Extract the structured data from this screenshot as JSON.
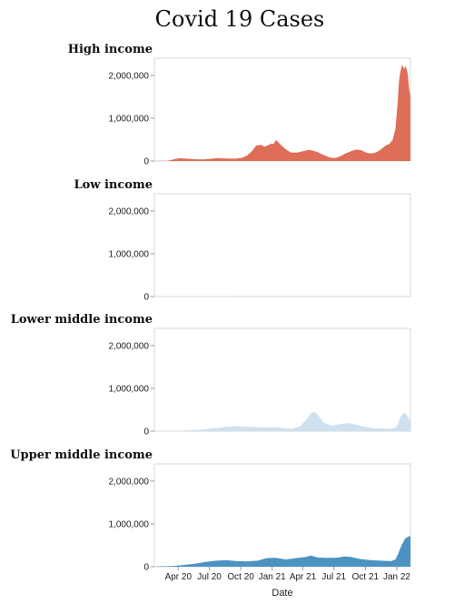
{
  "chart_data": {
    "type": "area",
    "title": "Covid 19 Cases",
    "xlabel": "Date",
    "ylabel": "",
    "ylim": [
      0,
      2400000
    ],
    "y_ticks": [
      0,
      1000000,
      2000000
    ],
    "y_tick_labels": [
      "0",
      "1,000,000",
      "2,000,000"
    ],
    "x_range": [
      "2020-01-22",
      "2022-02-10"
    ],
    "x_ticks": [
      "2020-04-01",
      "2020-07-01",
      "2020-10-01",
      "2021-01-01",
      "2021-04-01",
      "2021-07-01",
      "2021-10-01",
      "2022-01-01"
    ],
    "x_tick_labels": [
      "Apr 20",
      "Jul 20",
      "Oct 20",
      "Jan 21",
      "Apr 21",
      "Jul 21",
      "Oct 21",
      "Jan 22"
    ],
    "x_axis_shown_on": "bottom facet only",
    "grid": false,
    "legend": "none",
    "facets": [
      {
        "name": "High income",
        "color": "#de6e58",
        "points": [
          [
            "2020-01-22",
            0
          ],
          [
            "2020-03-01",
            5000
          ],
          [
            "2020-03-20",
            40000
          ],
          [
            "2020-04-05",
            65000
          ],
          [
            "2020-04-25",
            55000
          ],
          [
            "2020-05-20",
            40000
          ],
          [
            "2020-06-15",
            38000
          ],
          [
            "2020-07-10",
            55000
          ],
          [
            "2020-07-25",
            70000
          ],
          [
            "2020-08-20",
            60000
          ],
          [
            "2020-09-15",
            55000
          ],
          [
            "2020-10-05",
            75000
          ],
          [
            "2020-10-20",
            130000
          ],
          [
            "2020-11-05",
            250000
          ],
          [
            "2020-11-15",
            360000
          ],
          [
            "2020-11-30",
            375000
          ],
          [
            "2020-12-10",
            335000
          ],
          [
            "2020-12-20",
            370000
          ],
          [
            "2020-12-31",
            410000
          ],
          [
            "2021-01-05",
            395000
          ],
          [
            "2021-01-12",
            490000
          ],
          [
            "2021-01-25",
            390000
          ],
          [
            "2021-02-10",
            270000
          ],
          [
            "2021-02-25",
            200000
          ],
          [
            "2021-03-15",
            195000
          ],
          [
            "2021-04-01",
            230000
          ],
          [
            "2021-04-20",
            260000
          ],
          [
            "2021-05-10",
            220000
          ],
          [
            "2021-06-01",
            140000
          ],
          [
            "2021-06-20",
            80000
          ],
          [
            "2021-07-05",
            70000
          ],
          [
            "2021-07-20",
            110000
          ],
          [
            "2021-08-05",
            180000
          ],
          [
            "2021-08-20",
            230000
          ],
          [
            "2021-09-05",
            270000
          ],
          [
            "2021-09-20",
            250000
          ],
          [
            "2021-10-05",
            190000
          ],
          [
            "2021-10-20",
            175000
          ],
          [
            "2021-11-05",
            210000
          ],
          [
            "2021-11-20",
            300000
          ],
          [
            "2021-12-01",
            370000
          ],
          [
            "2021-12-10",
            400000
          ],
          [
            "2021-12-20",
            490000
          ],
          [
            "2021-12-28",
            750000
          ],
          [
            "2022-01-03",
            1300000
          ],
          [
            "2022-01-08",
            1900000
          ],
          [
            "2022-01-12",
            2100000
          ],
          [
            "2022-01-17",
            2250000
          ],
          [
            "2022-01-22",
            2150000
          ],
          [
            "2022-01-27",
            2220000
          ],
          [
            "2022-02-02",
            2050000
          ],
          [
            "2022-02-06",
            1700000
          ],
          [
            "2022-02-10",
            1500000
          ]
        ]
      },
      {
        "name": "Low income",
        "color": "#c9ccd6",
        "points": [
          [
            "2020-01-22",
            0
          ],
          [
            "2020-06-01",
            1000
          ],
          [
            "2020-12-01",
            2000
          ],
          [
            "2021-01-15",
            3000
          ],
          [
            "2021-06-15",
            3000
          ],
          [
            "2021-08-01",
            4000
          ],
          [
            "2021-12-25",
            5000
          ],
          [
            "2022-01-15",
            4000
          ],
          [
            "2022-02-10",
            1500
          ]
        ]
      },
      {
        "name": "Lower middle income",
        "color": "#cfe1ee",
        "points": [
          [
            "2020-01-22",
            0
          ],
          [
            "2020-04-01",
            10000
          ],
          [
            "2020-06-01",
            30000
          ],
          [
            "2020-07-15",
            70000
          ],
          [
            "2020-08-20",
            100000
          ],
          [
            "2020-09-20",
            120000
          ],
          [
            "2020-10-15",
            105000
          ],
          [
            "2020-11-10",
            95000
          ],
          [
            "2020-12-10",
            85000
          ],
          [
            "2021-01-10",
            95000
          ],
          [
            "2021-02-10",
            65000
          ],
          [
            "2021-03-01",
            60000
          ],
          [
            "2021-03-25",
            120000
          ],
          [
            "2021-04-10",
            260000
          ],
          [
            "2021-04-25",
            420000
          ],
          [
            "2021-05-05",
            450000
          ],
          [
            "2021-05-15",
            380000
          ],
          [
            "2021-06-01",
            200000
          ],
          [
            "2021-06-25",
            130000
          ],
          [
            "2021-07-20",
            170000
          ],
          [
            "2021-08-10",
            190000
          ],
          [
            "2021-09-01",
            160000
          ],
          [
            "2021-09-25",
            110000
          ],
          [
            "2021-10-25",
            70000
          ],
          [
            "2021-11-25",
            60000
          ],
          [
            "2021-12-20",
            60000
          ],
          [
            "2022-01-02",
            110000
          ],
          [
            "2022-01-10",
            300000
          ],
          [
            "2022-01-20",
            430000
          ],
          [
            "2022-01-28",
            410000
          ],
          [
            "2022-02-04",
            320000
          ],
          [
            "2022-02-10",
            200000
          ]
        ]
      },
      {
        "name": "Upper middle income",
        "color": "#4c92c3",
        "points": [
          [
            "2020-01-22",
            0
          ],
          [
            "2020-02-05",
            10000
          ],
          [
            "2020-03-15",
            15000
          ],
          [
            "2020-04-15",
            40000
          ],
          [
            "2020-05-20",
            70000
          ],
          [
            "2020-06-20",
            110000
          ],
          [
            "2020-07-20",
            140000
          ],
          [
            "2020-08-20",
            150000
          ],
          [
            "2020-09-20",
            130000
          ],
          [
            "2020-10-20",
            125000
          ],
          [
            "2020-11-20",
            140000
          ],
          [
            "2020-12-15",
            200000
          ],
          [
            "2021-01-10",
            210000
          ],
          [
            "2021-02-10",
            170000
          ],
          [
            "2021-03-10",
            200000
          ],
          [
            "2021-04-10",
            230000
          ],
          [
            "2021-04-25",
            260000
          ],
          [
            "2021-05-15",
            215000
          ],
          [
            "2021-06-10",
            205000
          ],
          [
            "2021-07-10",
            210000
          ],
          [
            "2021-08-01",
            240000
          ],
          [
            "2021-08-20",
            230000
          ],
          [
            "2021-09-15",
            180000
          ],
          [
            "2021-10-15",
            155000
          ],
          [
            "2021-11-15",
            140000
          ],
          [
            "2021-12-15",
            130000
          ],
          [
            "2021-12-28",
            170000
          ],
          [
            "2022-01-05",
            300000
          ],
          [
            "2022-01-15",
            500000
          ],
          [
            "2022-01-25",
            650000
          ],
          [
            "2022-02-03",
            700000
          ],
          [
            "2022-02-10",
            720000
          ]
        ]
      }
    ]
  }
}
